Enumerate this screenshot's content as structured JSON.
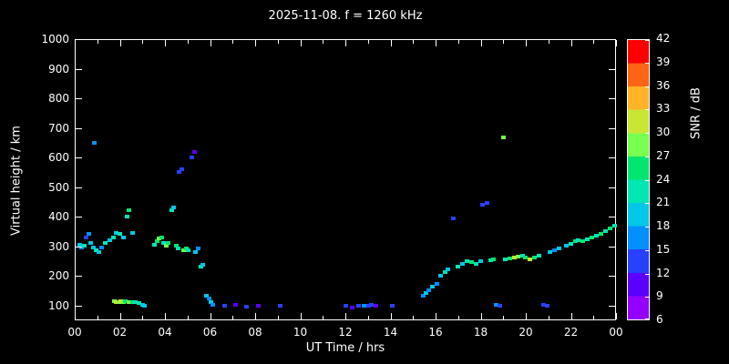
{
  "title": "2025-11-08. f = 1260 kHz",
  "axes": {
    "x_label": "UT Time / hrs",
    "y_label": "Virtual height / km",
    "x_tick_values": [
      0,
      2,
      4,
      6,
      8,
      10,
      12,
      14,
      16,
      18,
      20,
      22,
      24
    ],
    "x_tick_labels": [
      "00",
      "02",
      "04",
      "06",
      "08",
      "10",
      "12",
      "14",
      "16",
      "18",
      "20",
      "22",
      "00"
    ],
    "x_minor_tick_values": [
      1,
      3,
      5,
      7,
      9,
      11,
      13,
      15,
      17,
      19,
      21,
      23
    ],
    "y_tick_values": [
      100,
      200,
      300,
      400,
      500,
      600,
      700,
      800,
      900,
      1000
    ]
  },
  "colorbar": {
    "label": "SNR / dB",
    "min": 6,
    "max": 42,
    "step": 3,
    "ticks": [
      6,
      9,
      12,
      15,
      18,
      21,
      24,
      27,
      30,
      33,
      36,
      39,
      42
    ],
    "colors": [
      "#9400ff",
      "#5a00ff",
      "#2840ff",
      "#0090ff",
      "#00c8e6",
      "#00e6b4",
      "#00e66e",
      "#78ff50",
      "#c8e632",
      "#ffb428",
      "#ff6414",
      "#ff0000"
    ]
  },
  "chart_data": {
    "type": "scatter",
    "title": "2025-11-08. f = 1260 kHz",
    "xlabel": "UT Time / hrs",
    "ylabel": "Virtual height / km",
    "xlim": [
      0,
      24
    ],
    "ylim": [
      50,
      1000
    ],
    "grid": false,
    "legend": "colorbar right, SNR / dB, 6 to 42",
    "point_format": "[ut_hours, virtual_height_km, snr_db]",
    "points": [
      [
        0.15,
        305,
        18
      ],
      [
        0.25,
        295,
        15
      ],
      [
        0.35,
        300,
        21
      ],
      [
        0.45,
        330,
        12
      ],
      [
        0.55,
        340,
        15
      ],
      [
        0.65,
        310,
        18
      ],
      [
        0.75,
        295,
        18
      ],
      [
        0.8,
        650,
        15
      ],
      [
        0.9,
        285,
        21
      ],
      [
        1.0,
        280,
        18
      ],
      [
        1.15,
        295,
        15
      ],
      [
        1.3,
        310,
        21
      ],
      [
        1.5,
        320,
        18
      ],
      [
        1.65,
        330,
        21
      ],
      [
        1.8,
        345,
        18
      ],
      [
        1.95,
        340,
        21
      ],
      [
        2.1,
        330,
        18
      ],
      [
        2.25,
        400,
        21
      ],
      [
        2.35,
        420,
        24
      ],
      [
        2.5,
        345,
        18
      ],
      [
        1.7,
        112,
        27
      ],
      [
        1.8,
        110,
        30
      ],
      [
        1.9,
        110,
        27
      ],
      [
        2.0,
        112,
        30
      ],
      [
        2.1,
        110,
        27
      ],
      [
        2.2,
        112,
        24
      ],
      [
        2.35,
        110,
        27
      ],
      [
        2.5,
        108,
        24
      ],
      [
        2.65,
        110,
        21
      ],
      [
        2.8,
        105,
        21
      ],
      [
        2.95,
        100,
        18
      ],
      [
        3.05,
        95,
        18
      ],
      [
        3.5,
        305,
        21
      ],
      [
        3.6,
        315,
        24
      ],
      [
        3.7,
        325,
        27
      ],
      [
        3.8,
        330,
        24
      ],
      [
        3.9,
        310,
        21
      ],
      [
        4.0,
        300,
        27
      ],
      [
        4.1,
        310,
        24
      ],
      [
        4.25,
        420,
        21
      ],
      [
        4.35,
        430,
        18
      ],
      [
        4.45,
        300,
        24
      ],
      [
        4.55,
        290,
        21
      ],
      [
        4.6,
        550,
        12
      ],
      [
        4.7,
        560,
        12
      ],
      [
        4.8,
        285,
        27
      ],
      [
        4.9,
        290,
        24
      ],
      [
        5.0,
        285,
        21
      ],
      [
        5.15,
        600,
        12
      ],
      [
        5.25,
        620,
        9
      ],
      [
        5.3,
        280,
        18
      ],
      [
        5.45,
        290,
        15
      ],
      [
        5.55,
        230,
        21
      ],
      [
        5.65,
        235,
        18
      ],
      [
        5.8,
        130,
        18
      ],
      [
        5.9,
        120,
        15
      ],
      [
        6.0,
        110,
        18
      ],
      [
        6.1,
        100,
        15
      ],
      [
        6.6,
        95,
        12
      ],
      [
        7.1,
        100,
        9
      ],
      [
        7.6,
        92,
        12
      ],
      [
        8.1,
        95,
        9
      ],
      [
        9.1,
        98,
        12
      ],
      [
        12.0,
        95,
        12
      ],
      [
        12.3,
        90,
        9
      ],
      [
        12.55,
        95,
        12
      ],
      [
        12.8,
        98,
        15
      ],
      [
        13.0,
        95,
        12
      ],
      [
        13.15,
        100,
        12
      ],
      [
        13.35,
        95,
        9
      ],
      [
        14.05,
        98,
        12
      ],
      [
        15.45,
        130,
        15
      ],
      [
        15.55,
        140,
        18
      ],
      [
        15.7,
        150,
        15
      ],
      [
        15.85,
        160,
        18
      ],
      [
        16.05,
        170,
        15
      ],
      [
        16.2,
        200,
        18
      ],
      [
        16.4,
        210,
        21
      ],
      [
        16.55,
        220,
        18
      ],
      [
        16.8,
        395,
        12
      ],
      [
        17.0,
        230,
        21
      ],
      [
        17.2,
        240,
        18
      ],
      [
        17.4,
        248,
        21
      ],
      [
        17.6,
        245,
        24
      ],
      [
        17.8,
        240,
        21
      ],
      [
        18.0,
        248,
        18
      ],
      [
        18.1,
        440,
        12
      ],
      [
        18.3,
        445,
        12
      ],
      [
        18.45,
        250,
        21
      ],
      [
        18.55,
        255,
        24
      ],
      [
        18.7,
        100,
        15
      ],
      [
        18.85,
        95,
        12
      ],
      [
        19.0,
        670,
        27
      ],
      [
        19.1,
        255,
        21
      ],
      [
        19.3,
        258,
        24
      ],
      [
        19.5,
        260,
        30
      ],
      [
        19.65,
        265,
        27
      ],
      [
        19.85,
        268,
        21
      ],
      [
        20.0,
        262,
        24
      ],
      [
        20.2,
        255,
        30
      ],
      [
        20.4,
        262,
        24
      ],
      [
        20.6,
        268,
        21
      ],
      [
        20.8,
        100,
        12
      ],
      [
        20.95,
        95,
        12
      ],
      [
        21.1,
        280,
        18
      ],
      [
        21.3,
        285,
        15
      ],
      [
        21.5,
        290,
        18
      ],
      [
        21.8,
        300,
        18
      ],
      [
        22.0,
        308,
        21
      ],
      [
        22.2,
        315,
        24
      ],
      [
        22.35,
        318,
        21
      ],
      [
        22.55,
        315,
        24
      ],
      [
        22.75,
        322,
        21
      ],
      [
        22.95,
        330,
        24
      ],
      [
        23.15,
        335,
        21
      ],
      [
        23.35,
        340,
        24
      ],
      [
        23.55,
        350,
        21
      ],
      [
        23.75,
        358,
        24
      ],
      [
        23.95,
        368,
        21
      ]
    ]
  }
}
